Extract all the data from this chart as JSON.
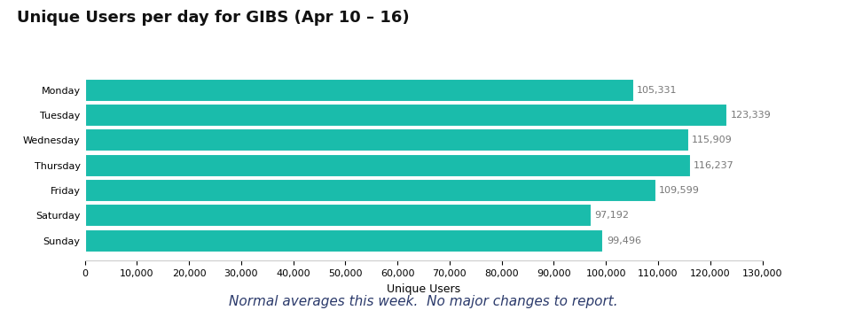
{
  "title": "Unique Users per day for GIBS (Apr 10 – 16)",
  "xlabel": "Unique Users",
  "categories": [
    "Monday",
    "Tuesday",
    "Wednesday",
    "Thursday",
    "Friday",
    "Saturday",
    "Sunday"
  ],
  "values": [
    105331,
    123339,
    115909,
    116237,
    109599,
    97192,
    99496
  ],
  "bar_color": "#1ABCAB",
  "label_color": "#777777",
  "xlim": [
    0,
    130000
  ],
  "xticks": [
    0,
    10000,
    20000,
    30000,
    40000,
    50000,
    60000,
    70000,
    80000,
    90000,
    100000,
    110000,
    120000,
    130000
  ],
  "footnote": "Normal averages this week.  No major changes to report.",
  "background_color": "#ffffff",
  "title_fontsize": 13,
  "bar_label_fontsize": 8,
  "axis_label_fontsize": 9,
  "tick_fontsize": 8,
  "footnote_fontsize": 11,
  "footnote_color": "#2b3a6b"
}
